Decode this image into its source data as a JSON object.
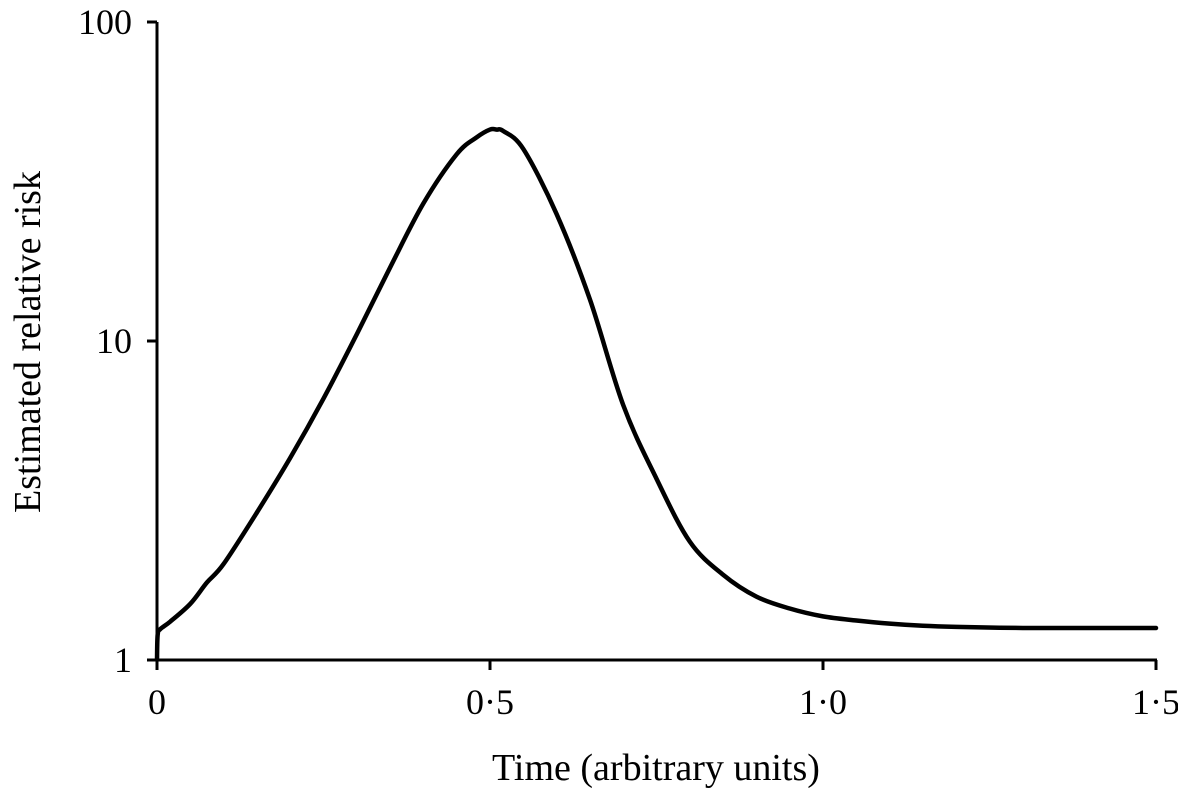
{
  "chart_data": {
    "type": "line",
    "title": "",
    "xlabel": "Time (arbitrary units)",
    "ylabel": "Estimated relative risk",
    "y_scale": "log",
    "xlim": [
      0,
      1.5
    ],
    "ylim": [
      1,
      100
    ],
    "x_ticks": [
      {
        "value": 0,
        "label": "0"
      },
      {
        "value": 0.5,
        "label": "0·5"
      },
      {
        "value": 1.0,
        "label": "1·0"
      },
      {
        "value": 1.5,
        "label": "1·5"
      }
    ],
    "y_ticks": [
      {
        "value": 1,
        "label": "1"
      },
      {
        "value": 10,
        "label": "10"
      },
      {
        "value": 100,
        "label": "100"
      }
    ],
    "grid": false,
    "legend": false,
    "line_color": "#000000",
    "series": [
      {
        "x": [
          0,
          0.001,
          0.005,
          0.02,
          0.05,
          0.075,
          0.1,
          0.15,
          0.2,
          0.25,
          0.3,
          0.35,
          0.4,
          0.45,
          0.48,
          0.5,
          0.51,
          0.52,
          0.55,
          0.6,
          0.65,
          0.7,
          0.75,
          0.8,
          0.85,
          0.9,
          0.95,
          1.0,
          1.05,
          1.1,
          1.15,
          1.2,
          1.3,
          1.4,
          1.5
        ],
        "y": [
          1.0,
          1.2,
          1.25,
          1.32,
          1.5,
          1.75,
          2.0,
          2.9,
          4.3,
          6.6,
          10.5,
          17.0,
          27.0,
          38.5,
          43.5,
          46.0,
          46.0,
          45.5,
          40.0,
          25.0,
          13.5,
          6.3,
          3.7,
          2.35,
          1.85,
          1.58,
          1.45,
          1.37,
          1.33,
          1.3,
          1.28,
          1.27,
          1.26,
          1.26,
          1.26
        ]
      }
    ]
  }
}
